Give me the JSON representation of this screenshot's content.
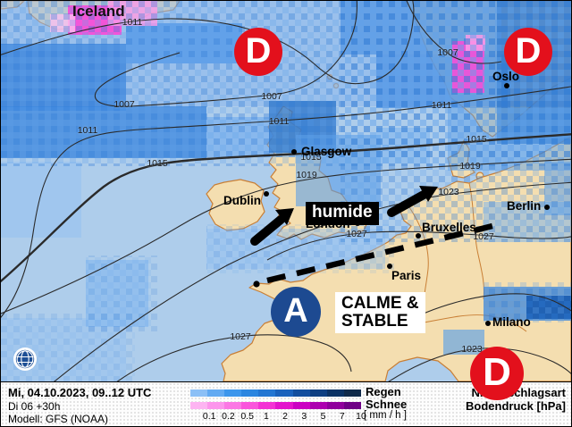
{
  "info": {
    "line1": "Mi, 04.10.2023, 09..12 UTC",
    "line2": "Di 06 +30h",
    "line3": "Modell: GFS (NOAA)"
  },
  "legend": {
    "rain_label": "Regen",
    "snow_label": "Schnee",
    "unit_label": "[ mm / h ]",
    "precip_type_label": "Niederschlagsart",
    "pressure_label": "Bodendruck [hPa]",
    "thresholds": [
      "0.1",
      "0.2",
      "0.5",
      "1",
      "2",
      "3",
      "5",
      "7",
      "10"
    ],
    "rain_colors": [
      "#8cc0f6",
      "#62aaf2",
      "#3c96ec",
      "#2b86e0",
      "#2376d2",
      "#1a62bc",
      "#124e9e",
      "#0d3f82",
      "#0a3264",
      "#0f2a4a"
    ],
    "snow_colors": [
      "#fdb4f2",
      "#fc96ec",
      "#fb78e4",
      "#fa55dc",
      "#f332d4",
      "#e313cc",
      "#cb00c2",
      "#ad00b0",
      "#8f009c",
      "#6f0086"
    ]
  },
  "map": {
    "region_label": "Iceland",
    "annotations": {
      "humide": "humide",
      "calme_line1": "CALME &",
      "calme_line2": "STABLE"
    },
    "cities": [
      {
        "name": "Glasgow"
      },
      {
        "name": "Dublin"
      },
      {
        "name": "London"
      },
      {
        "name": "Bruxelles"
      },
      {
        "name": "Berlin"
      },
      {
        "name": "Paris"
      },
      {
        "name": "Oslo"
      },
      {
        "name": "Milano"
      }
    ],
    "isobar_labels": [
      {
        "v": "1011"
      },
      {
        "v": "1007"
      },
      {
        "v": "1011"
      },
      {
        "v": "1007"
      },
      {
        "v": "1011"
      },
      {
        "v": "1007"
      },
      {
        "v": "1011"
      },
      {
        "v": "1015"
      },
      {
        "v": "1015"
      },
      {
        "v": "1015"
      },
      {
        "v": "1019"
      },
      {
        "v": "1019"
      },
      {
        "v": "1023"
      },
      {
        "v": "1027"
      },
      {
        "v": "1027"
      },
      {
        "v": "1027"
      },
      {
        "v": "1023"
      }
    ],
    "pressure_centers": [
      {
        "letter": "D"
      },
      {
        "letter": "D"
      },
      {
        "letter": "A"
      },
      {
        "letter": "D"
      }
    ],
    "colors": {
      "low": "#e3101c",
      "high": "#1d4a91",
      "sea": "#aecdeb",
      "land": "#f4deb0",
      "coast": "#c97f35"
    }
  }
}
